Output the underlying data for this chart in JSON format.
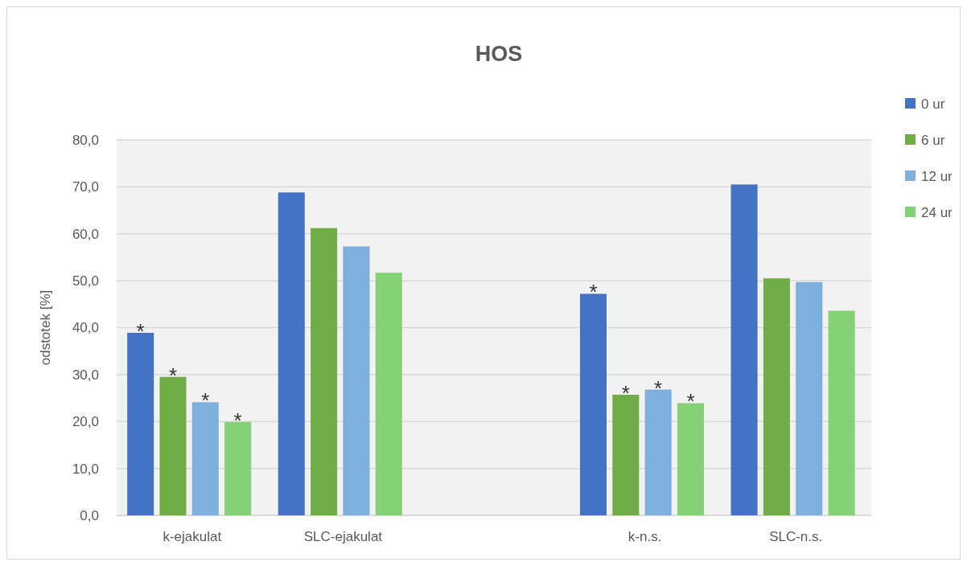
{
  "chart_data": {
    "type": "bar",
    "title": "HOS",
    "ylabel": "odstotek [%]",
    "categories": [
      "k-ejakulat",
      "SLC-ejakulat",
      null,
      "k-n.s.",
      "SLC-n.s."
    ],
    "series": [
      {
        "name": "0 ur",
        "color": "#4472c4",
        "values": [
          38.9,
          68.8,
          null,
          47.2,
          70.5
        ],
        "value_labels": [
          "*",
          null,
          null,
          "*",
          null
        ]
      },
      {
        "name": "6 ur",
        "color": "#70ad47",
        "values": [
          29.5,
          61.2,
          null,
          25.7,
          50.5
        ],
        "value_labels": [
          "*",
          null,
          null,
          "*",
          null
        ]
      },
      {
        "name": "12 ur",
        "color": "#7eb0de",
        "values": [
          24.1,
          57.3,
          null,
          26.8,
          49.7
        ],
        "value_labels": [
          "*",
          null,
          null,
          "*",
          null
        ]
      },
      {
        "name": "24 ur",
        "color": "#84d275",
        "values": [
          19.9,
          51.7,
          null,
          23.9,
          43.6
        ],
        "value_labels": [
          "*",
          null,
          null,
          "*",
          null
        ]
      }
    ],
    "ylim": [
      0,
      80
    ],
    "yticks": [
      {
        "value": 0,
        "label": "0,0"
      },
      {
        "value": 10,
        "label": "10,0"
      },
      {
        "value": 20,
        "label": "20,0"
      },
      {
        "value": 30,
        "label": "30,0"
      },
      {
        "value": 40,
        "label": "40,0"
      },
      {
        "value": 50,
        "label": "50,0"
      },
      {
        "value": 60,
        "label": "60,0"
      },
      {
        "value": 70,
        "label": "70,0"
      },
      {
        "value": 80,
        "label": "80,0"
      }
    ],
    "grid": "y",
    "legend": "right"
  }
}
